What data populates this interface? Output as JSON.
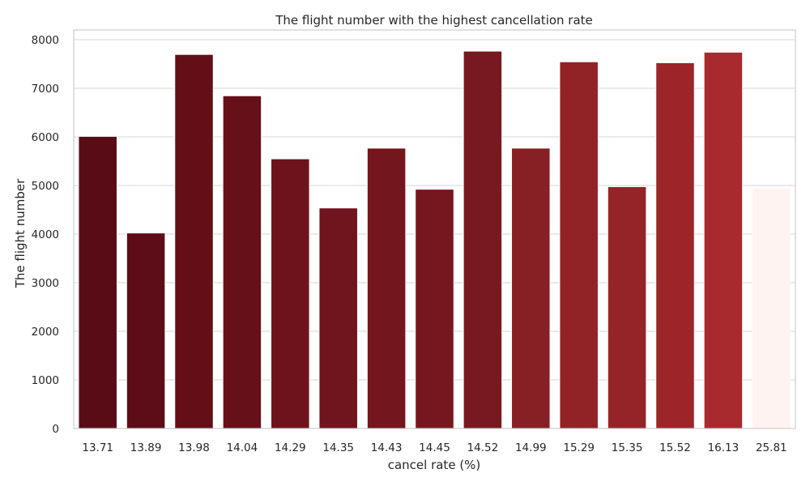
{
  "chart_data": {
    "type": "bar",
    "title": "The flight number with the highest cancellation rate",
    "xlabel": "cancel rate (%)",
    "ylabel": "The flight number",
    "ylim": [
      0,
      8200
    ],
    "yticks": [
      0,
      1000,
      2000,
      3000,
      4000,
      5000,
      6000,
      7000,
      8000
    ],
    "grid": "horizontal",
    "categories": [
      "13.71",
      "13.89",
      "13.98",
      "14.04",
      "14.29",
      "14.35",
      "14.43",
      "14.45",
      "14.52",
      "14.99",
      "15.29",
      "15.35",
      "15.52",
      "16.13",
      "25.81"
    ],
    "values": [
      6011,
      4023,
      7697,
      6846,
      5549,
      4538,
      5769,
      4923,
      7765,
      5769,
      7545,
      4976,
      7526,
      7743,
      4955
    ],
    "colors": [
      "#5a0c16",
      "#5c0d17",
      "#640f18",
      "#66101a",
      "#6e131c",
      "#70141d",
      "#74161e",
      "#76171f",
      "#781820",
      "#862024",
      "#912326",
      "#942427",
      "#9c2529",
      "#a82a2e",
      "#fff3f1"
    ]
  }
}
